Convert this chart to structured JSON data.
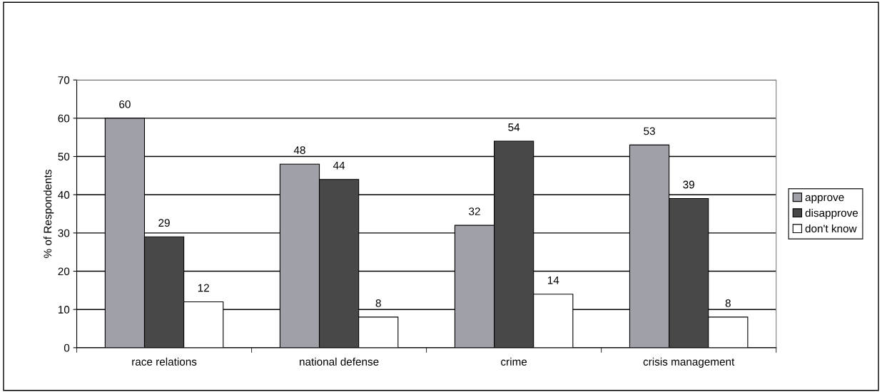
{
  "chart_data": {
    "type": "bar",
    "ylabel": "% of Respondents",
    "categories": [
      "race relations",
      "national defense",
      "crime",
      "crisis management"
    ],
    "series": [
      {
        "name": "approve",
        "color": "#a0a0a8",
        "values": [
          60,
          48,
          32,
          53
        ]
      },
      {
        "name": "disapprove",
        "color": "#484848",
        "values": [
          29,
          44,
          54,
          39
        ]
      },
      {
        "name": "don't know",
        "color": "#ffffff",
        "values": [
          12,
          8,
          14,
          8
        ]
      }
    ],
    "ylim": [
      0,
      70
    ],
    "yticks": [
      0,
      10,
      20,
      30,
      40,
      50,
      60,
      70
    ],
    "grid": "y",
    "legend": "right",
    "data_labels": true
  }
}
